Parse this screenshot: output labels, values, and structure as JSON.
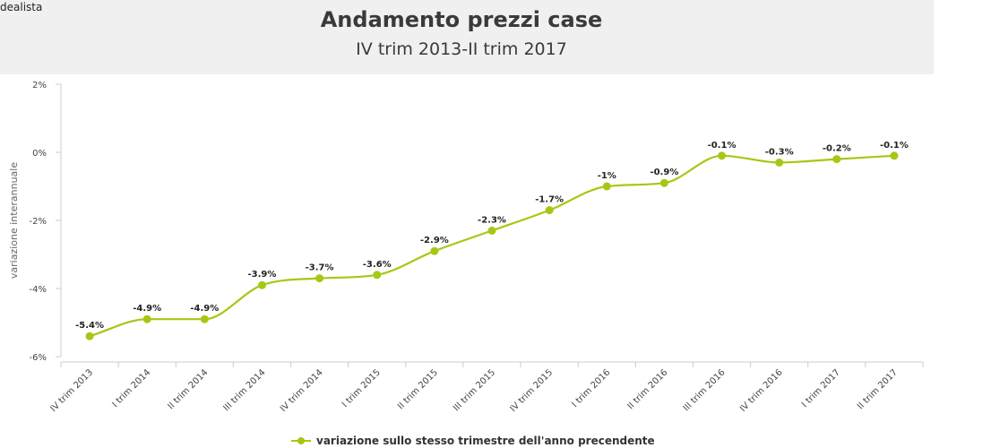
{
  "header": {
    "brand": "dealista",
    "title": "Andamento prezzi case",
    "subtitle": "IV trim 2013-II trim 2017"
  },
  "colors": {
    "series": "#a5c814",
    "header_bg": "#f0f0f0",
    "axis": "#cccccc",
    "text": "#333333"
  },
  "chart_data": {
    "type": "line",
    "title": "Andamento prezzi case",
    "subtitle": "IV trim 2013-II trim 2017",
    "xlabel": "",
    "ylabel": "variazione interannuale",
    "ylim": [
      -6,
      2
    ],
    "yticks": [
      -6,
      -4,
      -2,
      0,
      2
    ],
    "ytick_labels": [
      "-6%",
      "-4%",
      "-2%",
      "0%",
      "2%"
    ],
    "grid": false,
    "legend_position": "bottom-center",
    "categories": [
      "IV trim 2013",
      "I trim 2014",
      "II trim 2014",
      "III trim 2014",
      "IV trim 2014",
      "I trim 2015",
      "II trim 2015",
      "III trim 2015",
      "IV trim 2015",
      "I trim 2016",
      "II trim 2016",
      "III trim 2016",
      "IV trim 2016",
      "I trim 2017",
      "II trim 2017"
    ],
    "series": [
      {
        "name": "variazione sullo stesso trimestre dell'anno precendente",
        "values": [
          -5.4,
          -4.9,
          -4.9,
          -3.9,
          -3.7,
          -3.6,
          -2.9,
          -2.3,
          -1.7,
          -1.0,
          -0.9,
          -0.1,
          -0.3,
          -0.2,
          -0.1
        ],
        "labels": [
          "-5.4%",
          "-4.9%",
          "-4.9%",
          "-3.9%",
          "-3.7%",
          "-3.6%",
          "-2.9%",
          "-2.3%",
          "-1.7%",
          "-1%",
          "-0.9%",
          "-0.1%",
          "-0.3%",
          "-0.2%",
          "-0.1%"
        ]
      }
    ]
  }
}
